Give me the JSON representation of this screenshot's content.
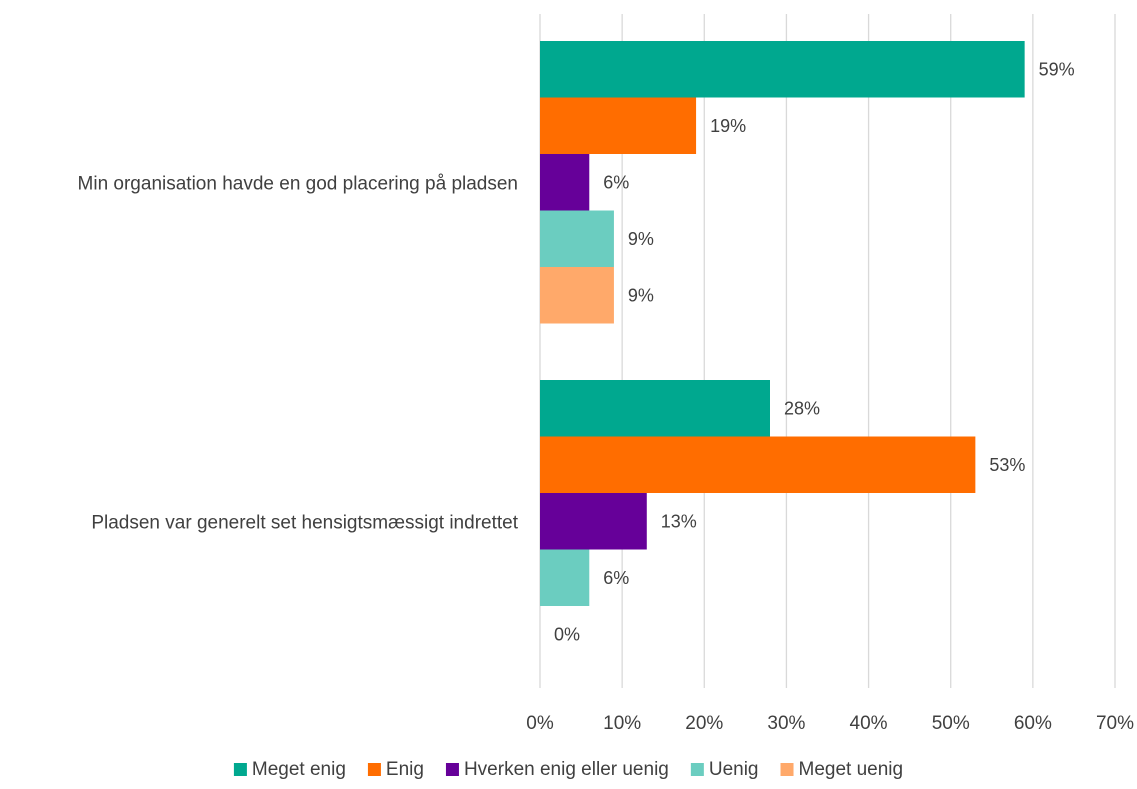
{
  "chart_data": {
    "type": "bar",
    "orientation": "horizontal",
    "categories": [
      "Min organisation havde en god placering på pladsen",
      "Pladsen var generelt set hensigtsmæssigt indrettet"
    ],
    "series": [
      {
        "name": "Meget enig",
        "color": "#00A88F",
        "values": [
          59,
          28
        ],
        "labels": [
          "59%",
          "28%"
        ]
      },
      {
        "name": "Enig",
        "color": "#FF6D00",
        "values": [
          19,
          53
        ],
        "labels": [
          "19%",
          "53%"
        ]
      },
      {
        "name": "Hverken enig eller uenig",
        "color": "#660099",
        "values": [
          6,
          13
        ],
        "labels": [
          "6%",
          "13%"
        ]
      },
      {
        "name": "Uenig",
        "color": "#6BCDC0",
        "values": [
          9,
          6
        ],
        "labels": [
          "9%",
          "6%"
        ]
      },
      {
        "name": "Meget uenig",
        "color": "#FFA96A",
        "values": [
          9,
          0
        ],
        "labels": [
          "9%",
          "0%"
        ]
      }
    ],
    "xlim": [
      0,
      70
    ],
    "xticks": [
      0,
      10,
      20,
      30,
      40,
      50,
      60,
      70
    ],
    "xtick_labels": [
      "0%",
      "10%",
      "20%",
      "30%",
      "40%",
      "50%",
      "60%",
      "70%"
    ],
    "grid": "vertical",
    "legend": "bottom",
    "xlabel": "",
    "ylabel": "",
    "title": ""
  }
}
